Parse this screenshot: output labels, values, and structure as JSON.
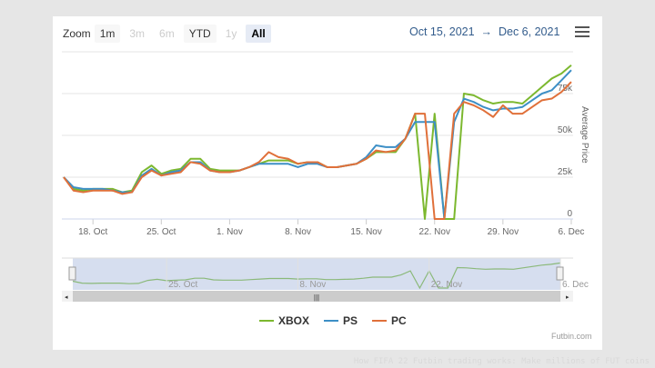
{
  "toolbar": {
    "zoom_label": "Zoom",
    "buttons": [
      {
        "label": "1m",
        "state": "enabled"
      },
      {
        "label": "3m",
        "state": "disabled"
      },
      {
        "label": "6m",
        "state": "disabled"
      },
      {
        "label": "YTD",
        "state": "enabled"
      },
      {
        "label": "1y",
        "state": "disabled"
      },
      {
        "label": "All",
        "state": "active"
      }
    ],
    "range_from": "Oct 15, 2021",
    "range_arrow": "→",
    "range_to": "Dec 6, 2021"
  },
  "chart_data": {
    "type": "line",
    "start_date": "2021-10-15",
    "end_date": "2021-12-06",
    "xlabel": "",
    "ylabel": "Average Price",
    "ylim": [
      0,
      100000
    ],
    "y_ticks": [
      "0",
      "25k",
      "50k",
      "75k"
    ],
    "x_ticks": [
      "18. Oct",
      "25. Oct",
      "1. Nov",
      "8. Nov",
      "15. Nov",
      "22. Nov",
      "29. Nov",
      "6. Dec"
    ],
    "x_tick_days": [
      3,
      10,
      17,
      24,
      31,
      38,
      45,
      52
    ],
    "navigator_ticks": [
      "25. Oct",
      "8. Nov",
      "22. Nov",
      "6. Dec"
    ],
    "navigator_tick_days": [
      10,
      24,
      38,
      52
    ],
    "series": [
      {
        "name": "XBOX",
        "color": "#7cb82f",
        "values": [
          25,
          18,
          17,
          18,
          18,
          18,
          16,
          17,
          28,
          32,
          27,
          29,
          30,
          36,
          36,
          30,
          29,
          29,
          29,
          31,
          33,
          35,
          35,
          35,
          33,
          34,
          34,
          31,
          31,
          32,
          33,
          36,
          40,
          40,
          40,
          48,
          63,
          0,
          63,
          0,
          0,
          75,
          74,
          71,
          69,
          70,
          70,
          69,
          74,
          79,
          84,
          87,
          92
        ]
      },
      {
        "name": "PS",
        "color": "#3d8fc6",
        "values": [
          25,
          19,
          18,
          18,
          18,
          17,
          16,
          16,
          26,
          30,
          26,
          28,
          29,
          34,
          34,
          29,
          28,
          28,
          29,
          31,
          33,
          33,
          33,
          33,
          31,
          33,
          33,
          31,
          31,
          32,
          33,
          37,
          44,
          43,
          43,
          48,
          58,
          58,
          58,
          0,
          58,
          72,
          70,
          67,
          65,
          66,
          66,
          67,
          71,
          75,
          77,
          83,
          89
        ]
      },
      {
        "name": "PC",
        "color": "#e0703a",
        "values": [
          25,
          17,
          16,
          17,
          17,
          17,
          15,
          16,
          25,
          29,
          26,
          27,
          28,
          34,
          33,
          29,
          28,
          28,
          29,
          31,
          34,
          40,
          37,
          36,
          33,
          34,
          34,
          31,
          31,
          32,
          33,
          36,
          41,
          40,
          41,
          48,
          63,
          63,
          0,
          0,
          63,
          70,
          68,
          65,
          61,
          68,
          63,
          63,
          67,
          71,
          72,
          76,
          82
        ]
      }
    ],
    "value_unit": "thousands",
    "legend_position": "bottom-center"
  },
  "credit": "Futbin.com",
  "watermark": "How FIFA 22 Futbin trading works: Make millions of FUT coins"
}
